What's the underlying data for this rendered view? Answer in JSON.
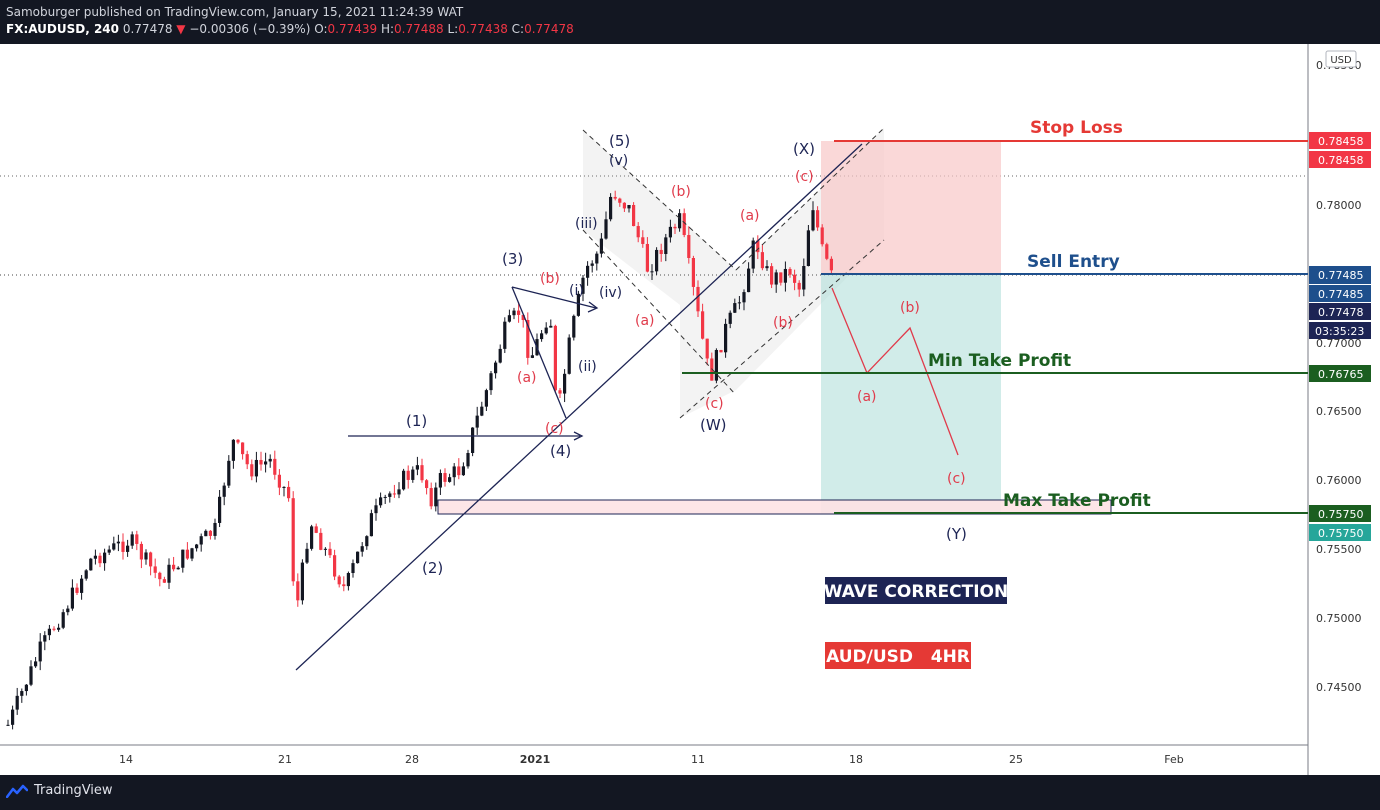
{
  "header": {
    "publisher": "Samoburger published on TradingView.com, January 15, 2021 11:24:39 WAT",
    "symbol": "FX:AUDUSD, 240",
    "last": "0.77478",
    "change": "−0.00306 (−0.39%)",
    "open_label": "O:",
    "open": "0.77439",
    "high_label": "H:",
    "high": "0.77488",
    "low_label": "L:",
    "low": "0.77438",
    "close_label": "C:",
    "close": "0.77478"
  },
  "footer": {
    "brand": "TradingView"
  },
  "colors": {
    "up": "#131722",
    "down": "#f23645",
    "navy": "#1d2454",
    "red": "#e03b4b",
    "green": "#1b5e20",
    "blue": "#1e4f8c"
  },
  "chart_data": {
    "type": "candlestick",
    "title": "AUD/USD 4HR",
    "ylim": [
      0.74,
      0.79
    ],
    "price_ticks": [
      "0.74500",
      "0.75000",
      "0.75500",
      "0.76000",
      "0.76500",
      "0.77000",
      "0.77500",
      "0.78000"
    ],
    "x_ticks": [
      "14",
      "21",
      "28",
      "2021",
      "11",
      "18",
      "25",
      "Feb"
    ],
    "currency": "USD",
    "price_badges": {
      "stop": [
        "0.78458",
        "0.78458"
      ],
      "entry": [
        "0.77485",
        "0.77485",
        "0.77478",
        "03:35:23"
      ],
      "min_tp": "0.76765",
      "max_tp": [
        "0.75750",
        "0.75750"
      ]
    },
    "levels": {
      "stop_loss": {
        "label": "Stop Loss",
        "price": 0.78458
      },
      "sell_entry": {
        "label": "Sell Entry",
        "price": 0.77485
      },
      "min_take_profit": {
        "label": "Min Take Profit",
        "price": 0.76765
      },
      "max_take_profit": {
        "label": "Max Take Profit",
        "price": 0.7575
      }
    },
    "wave_labels": {
      "w1": "(1)",
      "w2": "(2)",
      "w3": "(3)",
      "w4": "(4)",
      "w5": "(5)",
      "i": "(i)",
      "ii": "(ii)",
      "iii": "(iii)",
      "iv": "(iv)",
      "v": "(v)",
      "a1": "(a)",
      "b1": "(b)",
      "c1": "(c)",
      "a2": "(a)",
      "b2": "(b)",
      "c2": "(c)",
      "a3": "(a)",
      "b3": "(b)",
      "c3": "(c)",
      "W": "(W)",
      "X": "(X)",
      "Y": "(Y)",
      "pa": "(a)",
      "pb": "(b)",
      "pc": "(c)"
    },
    "annotations": {
      "wave_correction": "WAVE CORRECTION",
      "pair": "AUD/USD   4HR"
    }
  }
}
